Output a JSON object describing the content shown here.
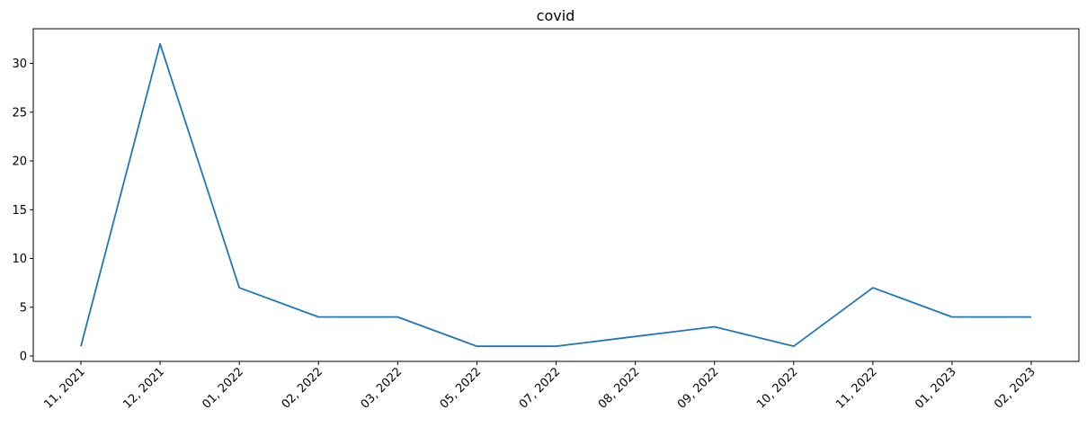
{
  "chart_data": {
    "type": "line",
    "title": "covid",
    "xlabel": "",
    "ylabel": "",
    "categories": [
      "11, 2021",
      "12, 2021",
      "01, 2022",
      "02, 2022",
      "03, 2022",
      "05, 2022",
      "07, 2022",
      "08, 2022",
      "09, 2022",
      "10, 2022",
      "11, 2022",
      "01, 2023",
      "02, 2023"
    ],
    "series": [
      {
        "values": [
          1,
          32,
          7,
          4,
          4,
          1,
          1,
          2,
          3,
          1,
          7,
          4,
          4
        ],
        "color": "#1f77b4"
      }
    ],
    "yticks": [
      0,
      5,
      10,
      15,
      20,
      25,
      30
    ],
    "ylim": [
      -0.55,
      33.55
    ],
    "grid": false,
    "legend": "none"
  }
}
